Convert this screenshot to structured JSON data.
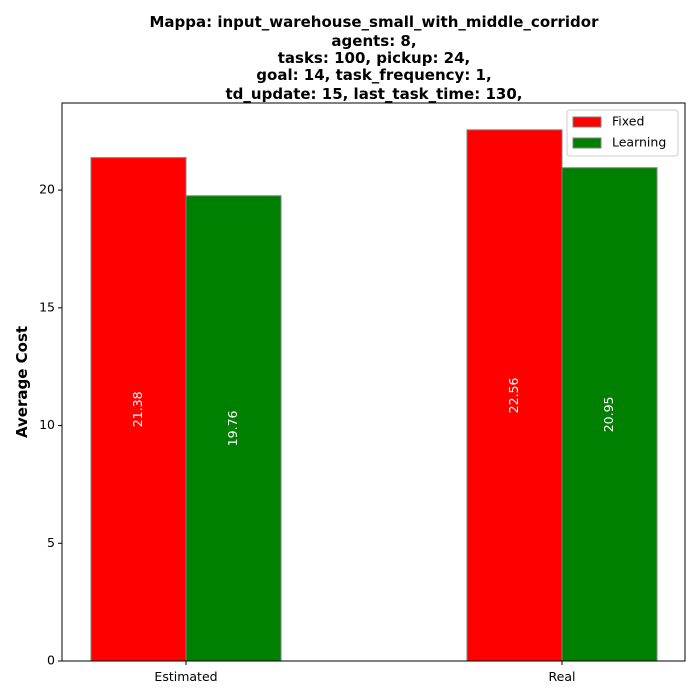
{
  "chart_data": {
    "type": "bar",
    "title_lines": [
      "Mappa: input_warehouse_small_with_middle_corridor",
      "agents: 8,",
      "tasks: 100, pickup: 24,",
      "goal: 14, task_frequency: 1,",
      "td_update: 15, last_task_time: 130,"
    ],
    "xlabel": "",
    "ylabel": "Average Cost",
    "categories": [
      "Estimated",
      "Real"
    ],
    "series": [
      {
        "name": "Fixed",
        "color": "#ff0000",
        "values": [
          21.38,
          22.56
        ],
        "value_labels": [
          "21.38",
          "22.56"
        ]
      },
      {
        "name": "Learning",
        "color": "#008000",
        "values": [
          19.76,
          20.95
        ],
        "value_labels": [
          "19.76",
          "20.95"
        ]
      }
    ],
    "ylim": [
      0,
      23.7
    ],
    "yticks": [
      0,
      5,
      10,
      15,
      20
    ],
    "ytick_labels": [
      "0",
      "5",
      "10",
      "15",
      "20"
    ],
    "grid": false,
    "legend_position": "top-right"
  }
}
